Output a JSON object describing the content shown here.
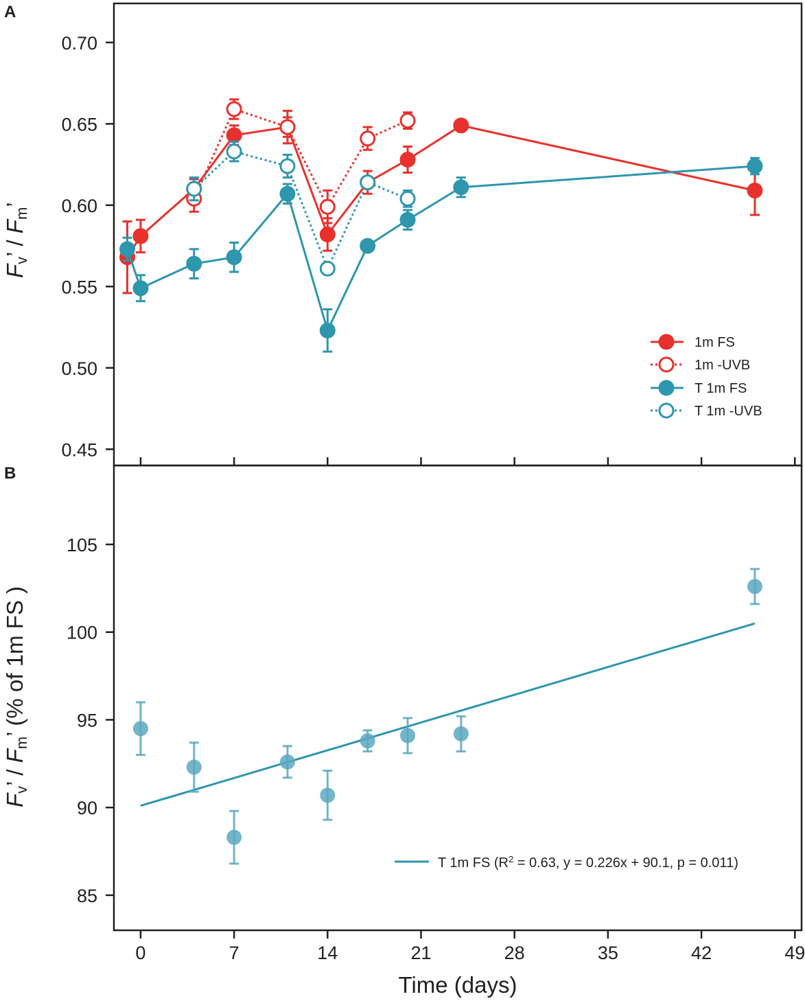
{
  "chart_data": [
    {
      "panel": "A",
      "type": "line",
      "ylabel_parts": {
        "F": "F",
        "v": "v",
        "sep": "’ / ",
        "m": "m",
        "prime": "’"
      },
      "xlim": [
        -2,
        49.5
      ],
      "ylim": [
        0.44,
        0.724
      ],
      "xticks": [
        0,
        7,
        14,
        21,
        28,
        35,
        42,
        49
      ],
      "yticks": [
        0.45,
        0.5,
        0.55,
        0.6,
        0.65,
        0.7
      ],
      "ytick_labels": [
        "0.45",
        "0.50",
        "0.55",
        "0.60",
        "0.65",
        "0.70"
      ],
      "legend_position": "bottom-right",
      "series": [
        {
          "name": "1m FS",
          "color": "#e8312c",
          "filled": true,
          "dashed": false,
          "x": [
            -1,
            0,
            4,
            7,
            11,
            14,
            17,
            20,
            24,
            46
          ],
          "y": [
            0.568,
            0.581,
            0.61,
            0.643,
            0.648,
            0.582,
            0.614,
            0.628,
            0.649,
            0.609
          ],
          "err": [
            0.022,
            0.01,
            0.006,
            0.006,
            0.006,
            0.01,
            0.007,
            0.008,
            0.0,
            0.015
          ]
        },
        {
          "name": "1m -UVB",
          "color": "#e8312c",
          "filled": false,
          "dashed": true,
          "x": [
            4,
            7,
            11,
            14,
            17,
            20
          ],
          "y": [
            0.604,
            0.659,
            0.648,
            0.599,
            0.641,
            0.652
          ],
          "err": [
            0.008,
            0.006,
            0.01,
            0.01,
            0.007,
            0.005
          ]
        },
        {
          "name": "T 1m FS",
          "color": "#2e96ad",
          "filled": true,
          "dashed": false,
          "x": [
            -1,
            0,
            4,
            7,
            11,
            14,
            17,
            20,
            24,
            46
          ],
          "y": [
            0.573,
            0.549,
            0.564,
            0.568,
            0.607,
            0.523,
            0.575,
            0.591,
            0.611,
            0.624
          ],
          "err": [
            0.007,
            0.008,
            0.009,
            0.009,
            0.006,
            0.013,
            0.0,
            0.006,
            0.006,
            0.005
          ]
        },
        {
          "name": "T 1m -UVB",
          "color": "#2e96ad",
          "filled": false,
          "dashed": true,
          "x": [
            4,
            7,
            11,
            14,
            17,
            20
          ],
          "y": [
            0.61,
            0.633,
            0.624,
            0.561,
            0.614,
            0.604
          ],
          "err": [
            0.007,
            0.006,
            0.007,
            0.0,
            0.0,
            0.005
          ]
        }
      ]
    },
    {
      "panel": "B",
      "type": "scatter",
      "xlabel": "Time (days)",
      "ylabel_parts": {
        "F": "F",
        "v": "v",
        "sep": "’ / ",
        "m": "m",
        "prime": "’",
        "suffix": " (% of 1m FS )"
      },
      "xlim": [
        -2,
        49.5
      ],
      "ylim": [
        83,
        109.5
      ],
      "xticks": [
        0,
        7,
        14,
        21,
        28,
        35,
        42,
        49
      ],
      "xtick_labels": [
        "0",
        "7",
        "14",
        "21",
        "28",
        "35",
        "42",
        "49"
      ],
      "yticks": [
        85,
        90,
        95,
        100,
        105
      ],
      "ytick_labels": [
        "85",
        "90",
        "95",
        "100",
        "105"
      ],
      "legend_position": "bottom-right",
      "series": [
        {
          "name": "T 1m FS",
          "color": "#5aa8c0",
          "x": [
            0,
            4,
            7,
            11,
            14,
            17,
            20,
            24,
            46
          ],
          "y": [
            94.5,
            92.3,
            88.3,
            92.6,
            90.7,
            93.8,
            94.1,
            94.2,
            102.6
          ],
          "err": [
            1.5,
            1.4,
            1.5,
            0.9,
            1.4,
            0.6,
            1.0,
            1.0,
            1.0
          ]
        }
      ],
      "fit": {
        "color": "#2e96ad",
        "slope": 0.226,
        "intercept": 90.1,
        "x_range": [
          0,
          46
        ],
        "label": {
          "prefix": "T 1m FS (R",
          "sup": "2",
          "suffix": " = 0.63, y = 0.226x + 90.1, p = 0.011)"
        }
      }
    }
  ]
}
